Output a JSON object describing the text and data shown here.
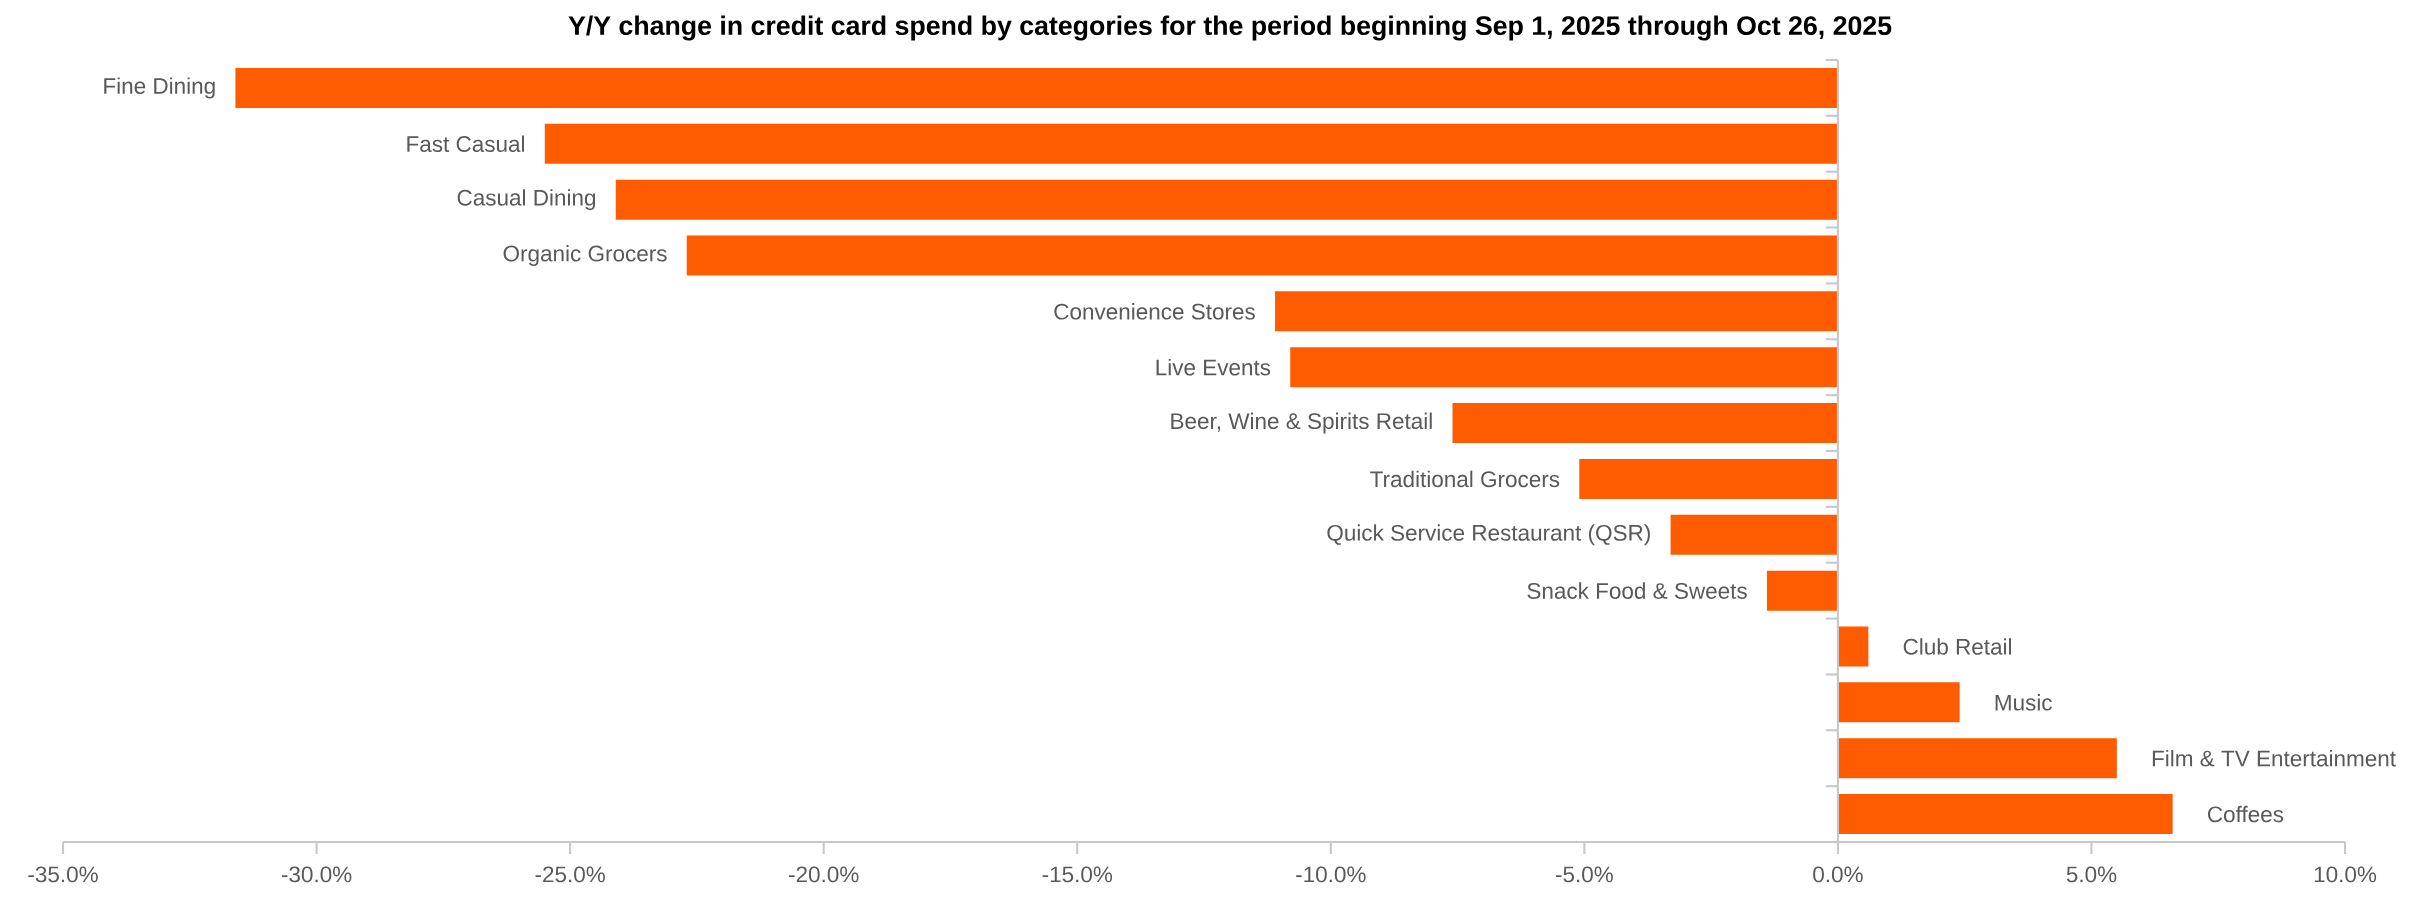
{
  "chart_data": {
    "type": "bar",
    "orientation": "horizontal",
    "title": "Y/Y change in credit card spend by categories for the period beginning Sep 1, 2025 through Oct 26, 2025",
    "categories": [
      "Fine Dining",
      "Fast Casual",
      "Casual Dining",
      "Organic Grocers",
      "Convenience Stores",
      "Live Events",
      "Beer, Wine & Spirits Retail",
      "Traditional Grocers",
      "Quick Service Restaurant (QSR)",
      "Snack Food & Sweets",
      "Club Retail",
      "Music",
      "Film & TV Entertainment",
      "Coffees"
    ],
    "values": [
      -31.6,
      -25.5,
      -24.1,
      -22.7,
      -11.1,
      -10.8,
      -7.6,
      -5.1,
      -3.3,
      -1.4,
      0.6,
      2.4,
      5.5,
      6.6
    ],
    "color": "#ff5b00",
    "xlim": [
      -35,
      10
    ],
    "xticks": [
      {
        "value": -35,
        "label": "-35.0%"
      },
      {
        "value": -30,
        "label": "-30.0%"
      },
      {
        "value": -25,
        "label": "-25.0%"
      },
      {
        "value": -20,
        "label": "-20.0%"
      },
      {
        "value": -15,
        "label": "-15.0%"
      },
      {
        "value": -10,
        "label": "-10.0%"
      },
      {
        "value": -5,
        "label": "-5.0%"
      },
      {
        "value": 0,
        "label": "0.0%"
      },
      {
        "value": 5,
        "label": "5.0%"
      },
      {
        "value": 10,
        "label": "10.0%"
      }
    ]
  }
}
